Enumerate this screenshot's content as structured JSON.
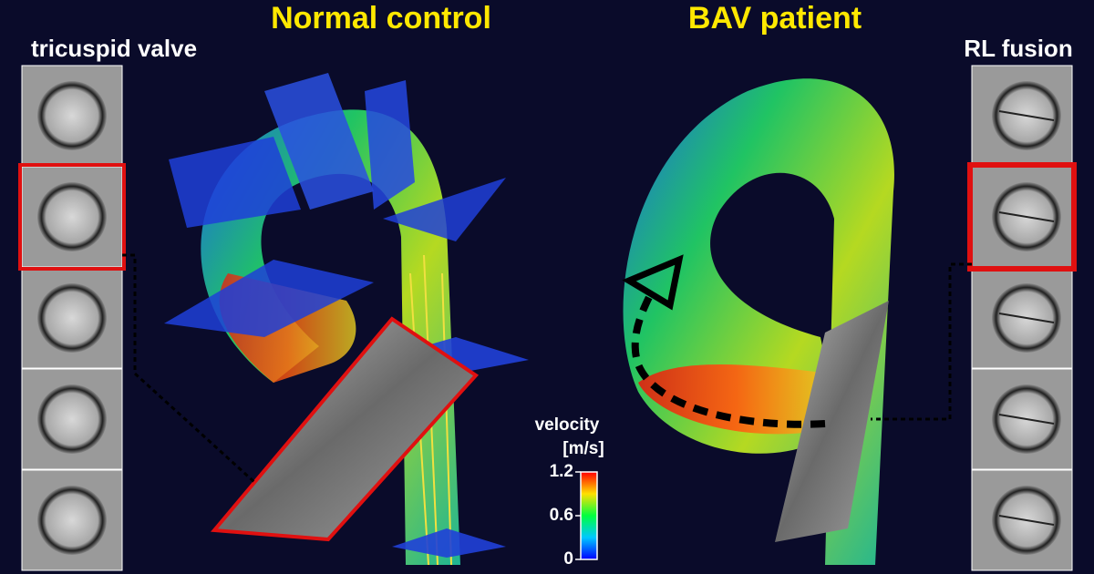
{
  "labels": {
    "left_strip": "tricuspid valve",
    "left_title": "Normal control",
    "right_title": "BAV patient",
    "right_strip": "RL fusion"
  },
  "colorbar": {
    "title": [
      "velocity",
      "[m/s]"
    ],
    "ticks": [
      1.2,
      0.6,
      0
    ]
  }
}
